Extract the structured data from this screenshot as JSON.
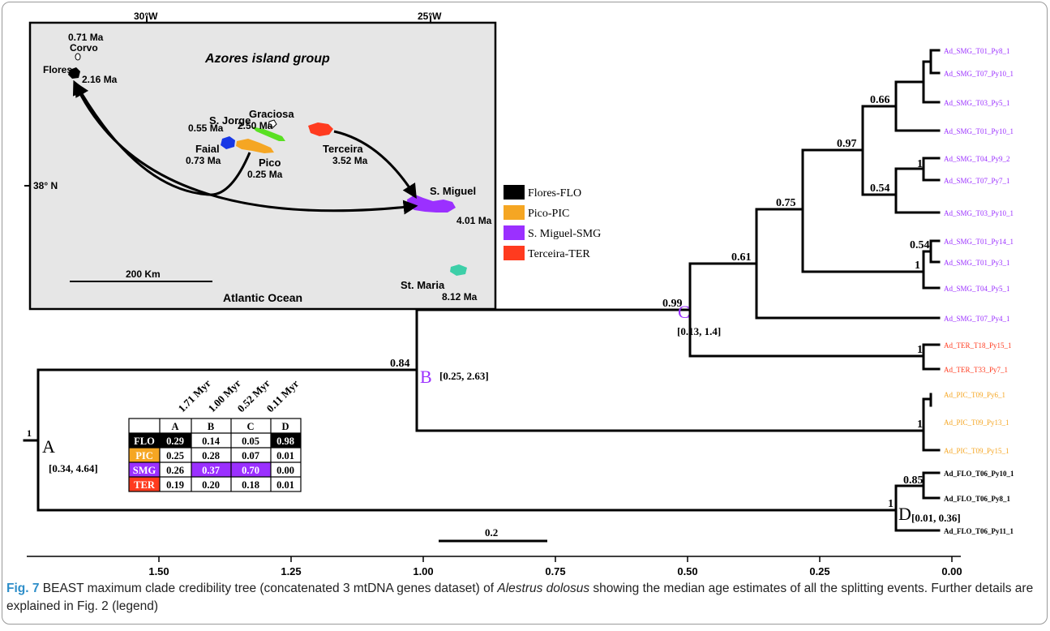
{
  "caption": {
    "fig_label": "Fig. 7",
    "text_1": " BEAST maximum clade credibility tree (concatenated 3 mtDNA genes dataset) of ",
    "species": "Alestrus dolosus",
    "text_2": " showing the median age estimates of all the splitting events. Further details are explained in Fig. 2 (legend)"
  },
  "colors": {
    "FLO": "#000000",
    "PIC": "#f5a623",
    "SMG": "#9b30ff",
    "TER": "#ff3b1f",
    "map_bg": "#e6e6e6"
  },
  "map": {
    "title": "Azores island group",
    "longitudes": [
      "30°W",
      "25°W"
    ],
    "latitude": "38° N",
    "ocean": "Atlantic Ocean",
    "scale_label": "200 Km",
    "islands": [
      {
        "name": "Corvo",
        "age": "0.71 Ma"
      },
      {
        "name": "Flores",
        "age": "2.16 Ma"
      },
      {
        "name": "Graciosa",
        "age": "2.50 Ma"
      },
      {
        "name": "S. Jorge",
        "age": "0.55 Ma"
      },
      {
        "name": "Faial",
        "age": "0.73 Ma"
      },
      {
        "name": "Pico",
        "age": "0.25 Ma"
      },
      {
        "name": "Terceira",
        "age": "3.52 Ma"
      },
      {
        "name": "S. Miguel",
        "age": "4.01 Ma"
      },
      {
        "name": "St. Maria",
        "age": "8.12 Ma"
      }
    ]
  },
  "legend": [
    {
      "label": "Flores-FLO",
      "color": "#000000"
    },
    {
      "label": "Pico-PIC",
      "color": "#f5a623"
    },
    {
      "label": "S. Miguel-SMG",
      "color": "#9b30ff"
    },
    {
      "label": "Terceira-TER",
      "color": "#ff3b1f"
    }
  ],
  "tips": [
    {
      "label": "Ad_SMG_T01_Py8_1",
      "group": "SMG"
    },
    {
      "label": "Ad_SMG_T07_Py10_1",
      "group": "SMG"
    },
    {
      "label": "Ad_SMG_T03_Py5_1",
      "group": "SMG"
    },
    {
      "label": "Ad_SMG_T01_Py10_1",
      "group": "SMG"
    },
    {
      "label": "Ad_SMG_T04_Py9_2",
      "group": "SMG"
    },
    {
      "label": "Ad_SMG_T07_Py7_1",
      "group": "SMG"
    },
    {
      "label": "Ad_SMG_T03_Py10_1",
      "group": "SMG"
    },
    {
      "label": "Ad_SMG_T01_Py14_1",
      "group": "SMG"
    },
    {
      "label": "Ad_SMG_T01_Py3_1",
      "group": "SMG"
    },
    {
      "label": "Ad_SMG_T04_Py5_1",
      "group": "SMG"
    },
    {
      "label": "Ad_SMG_T07_Py4_1",
      "group": "SMG"
    },
    {
      "label": "Ad_TER_T18_Py15_1",
      "group": "TER"
    },
    {
      "label": "Ad_TER_T33_Py7_1",
      "group": "TER"
    },
    {
      "label": "Ad_PIC_T09_Py6_1",
      "group": "PIC"
    },
    {
      "label": "Ad_PIC_T09_Py13_1",
      "group": "PIC"
    },
    {
      "label": "Ad_PIC_T09_Py15_1",
      "group": "PIC"
    },
    {
      "label": "Ad_FLO_T06_Py10_1",
      "group": "FLO"
    },
    {
      "label": "Ad_FLO_T06_Py8_1",
      "group": "FLO"
    },
    {
      "label": "Ad_FLO_T06_Py11_1",
      "group": "FLO"
    }
  ],
  "tree": {
    "root_support": "1",
    "supports": [
      "0.84",
      "0.99",
      "0.61",
      "0.75",
      "0.97",
      "0.66",
      "1",
      "0.54",
      "0.54",
      "1",
      "1",
      "1",
      "0.85",
      "1"
    ],
    "nodes": [
      {
        "letter": "A",
        "interval": "[0.34, 4.64]"
      },
      {
        "letter": "B",
        "interval": "[0.25, 2.63]"
      },
      {
        "letter": "C",
        "interval": "[0.13, 1.4]"
      },
      {
        "letter": "D",
        "interval": "[0.01, 0.36]"
      }
    ],
    "scale_bar": "0.2"
  },
  "axis": {
    "ticks": [
      "1.50",
      "1.25",
      "1.00",
      "0.75",
      "0.50",
      "0.25",
      "0.00"
    ]
  },
  "prob_table": {
    "ages": [
      "1.71 Myr",
      "1.00 Myr",
      "0.52 Myr",
      "0.11 Myr"
    ],
    "columns": [
      "A",
      "B",
      "C",
      "D"
    ],
    "rows": [
      {
        "area": "FLO",
        "values": [
          "0.29",
          "0.14",
          "0.05",
          "0.98"
        ]
      },
      {
        "area": "PIC",
        "values": [
          "0.25",
          "0.28",
          "0.07",
          "0.01"
        ]
      },
      {
        "area": "SMG",
        "values": [
          "0.26",
          "0.37",
          "0.70",
          "0.00"
        ]
      },
      {
        "area": "TER",
        "values": [
          "0.19",
          "0.20",
          "0.18",
          "0.01"
        ]
      }
    ]
  }
}
